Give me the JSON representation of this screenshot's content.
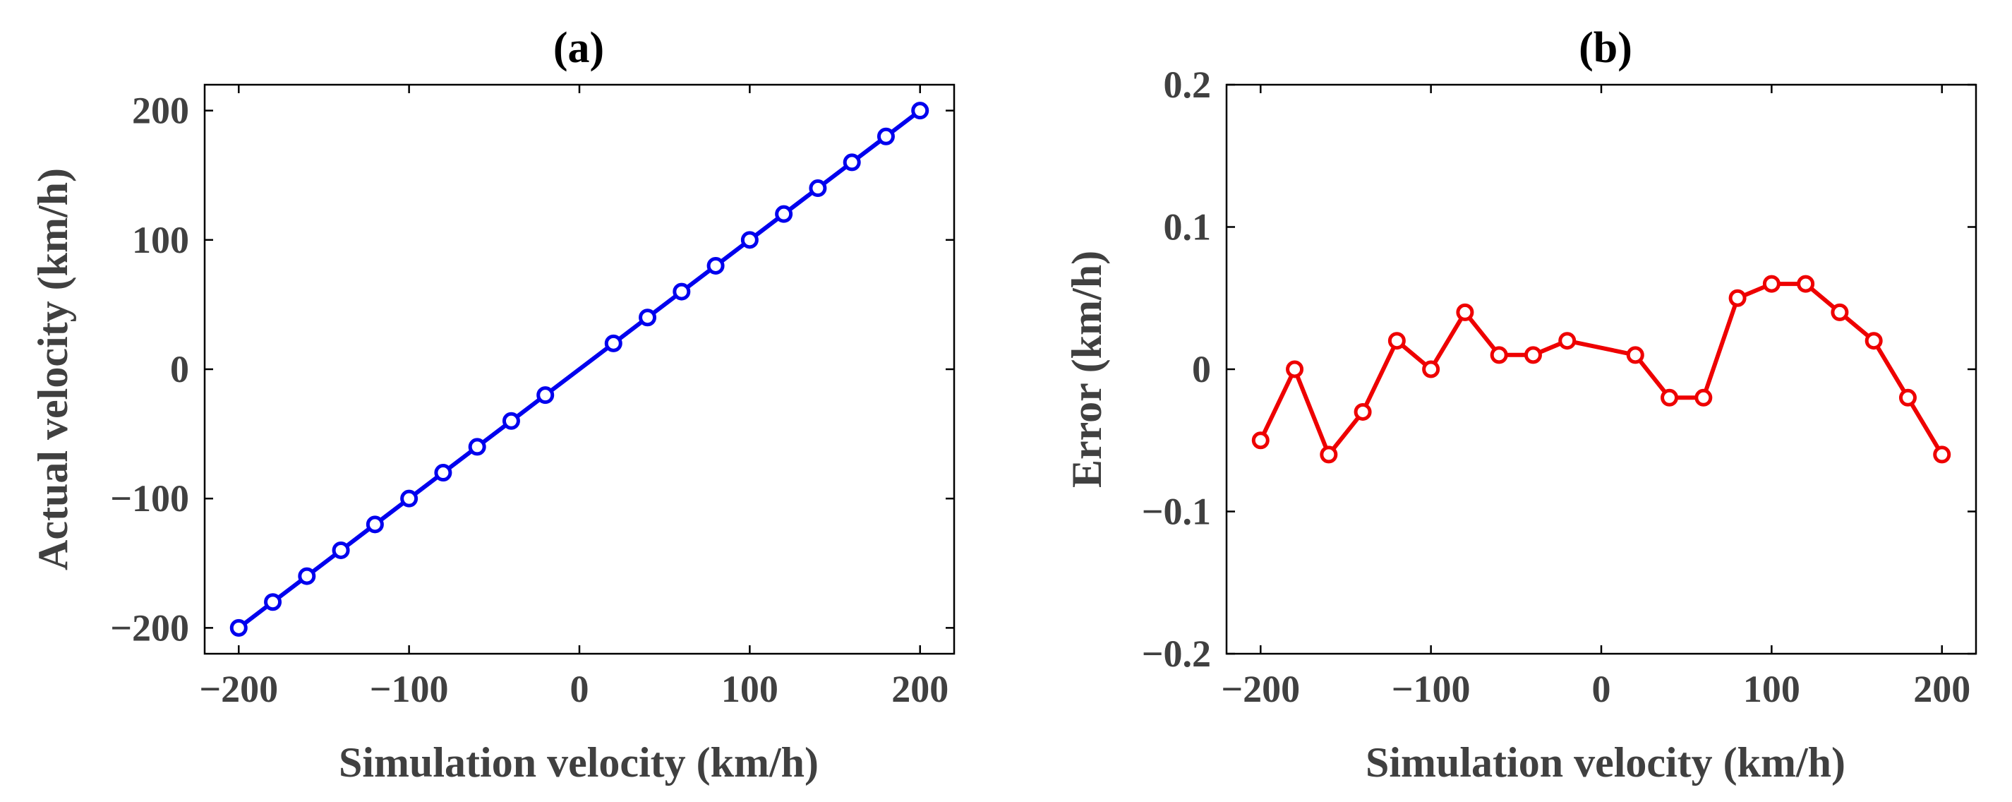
{
  "chart_data": [
    {
      "type": "line",
      "title": "(a)",
      "xlabel": "Simulation velocity (km/h)",
      "ylabel": "Actual velocity (km/h)",
      "xlim": [
        -220,
        220
      ],
      "ylim": [
        -220,
        220
      ],
      "xticks": [
        -200,
        -100,
        0,
        100,
        200
      ],
      "yticks": [
        -200,
        -100,
        0,
        100,
        200
      ],
      "xtick_labels": [
        "−200",
        "−100",
        "0",
        "100",
        "200"
      ],
      "ytick_labels": [
        "−200",
        "−100",
        "0",
        "100",
        "200"
      ],
      "grid": false,
      "color": "#0000ee",
      "marker": "circle",
      "series": [
        {
          "name": "Actual velocity",
          "x": [
            -200,
            -180,
            -160,
            -140,
            -120,
            -100,
            -80,
            -60,
            -40,
            -20,
            20,
            40,
            60,
            80,
            100,
            120,
            140,
            160,
            180,
            200
          ],
          "y": [
            -200,
            -180,
            -160,
            -140,
            -120,
            -100,
            -80,
            -60,
            -40,
            -20,
            20,
            40,
            60,
            80,
            100,
            120,
            140,
            160,
            180,
            200
          ]
        }
      ]
    },
    {
      "type": "line",
      "title": "(b)",
      "xlabel": "Simulation velocity (km/h)",
      "ylabel": "Error (km/h)",
      "xlim": [
        -220,
        220
      ],
      "ylim": [
        -0.2,
        0.2
      ],
      "xticks": [
        -200,
        -100,
        0,
        100,
        200
      ],
      "yticks": [
        -0.2,
        -0.1,
        0,
        0.1,
        0.2
      ],
      "xtick_labels": [
        "−200",
        "−100",
        "0",
        "100",
        "200"
      ],
      "ytick_labels": [
        "−0.2",
        "−0.1",
        "0",
        "0.1",
        "0.2"
      ],
      "grid": false,
      "color": "#ee0000",
      "marker": "circle",
      "series": [
        {
          "name": "Error",
          "x": [
            -200,
            -180,
            -160,
            -140,
            -120,
            -100,
            -80,
            -60,
            -40,
            -20,
            20,
            40,
            60,
            80,
            100,
            120,
            140,
            160,
            180,
            200
          ],
          "y": [
            -0.05,
            0.0,
            -0.06,
            -0.03,
            0.02,
            0.0,
            0.04,
            0.01,
            0.01,
            0.02,
            0.01,
            -0.02,
            -0.02,
            0.05,
            0.06,
            0.06,
            0.04,
            0.02,
            -0.02,
            -0.06
          ]
        }
      ]
    }
  ]
}
